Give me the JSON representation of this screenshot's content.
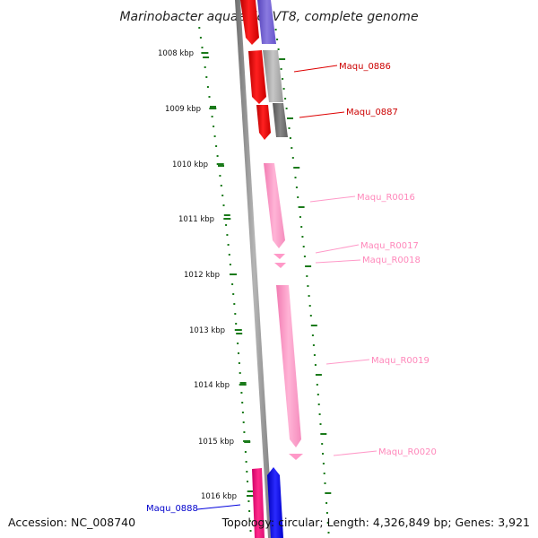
{
  "title": "Marinobacter aquaeolei VT8, complete genome",
  "footer": {
    "accession": "Accession: NC_008740",
    "topology": "Topology: circular; Length: 4,326,849 bp; Genes: 3,921"
  },
  "scale_labels": [
    "1008 kbp",
    "1009 kbp",
    "1010 kbp",
    "1011 kbp",
    "1012 kbp",
    "1013 kbp",
    "1014 kbp",
    "1015 kbp",
    "1016 kbp"
  ],
  "genes": [
    {
      "id": "Maqu_0886",
      "label": "Maqu_0886",
      "color": "#cc0000"
    },
    {
      "id": "Maqu_0887",
      "label": "Maqu_0887",
      "color": "#cc0000"
    },
    {
      "id": "Maqu_R0016",
      "label": "Maqu_R0016",
      "color": "#ff88bb"
    },
    {
      "id": "Maqu_R0017",
      "label": "Maqu_R0017",
      "color": "#ff88bb"
    },
    {
      "id": "Maqu_R0018",
      "label": "Maqu_R0018",
      "color": "#ff88bb"
    },
    {
      "id": "Maqu_R0019",
      "label": "Maqu_R0019",
      "color": "#ff88bb"
    },
    {
      "id": "Maqu_R0020",
      "label": "Maqu_R0020",
      "color": "#ff88bb"
    },
    {
      "id": "Maqu_0888",
      "label": "Maqu_0888",
      "color": "#0000cc"
    }
  ],
  "colors": {
    "backbone": "#7a7a7a",
    "tick": "#1a7a1a",
    "cds_red": "#ff0000",
    "rna_pink": "#ff99c8",
    "gray_feature": "#999999",
    "purple_feature": "#6a5acd",
    "blue_feature": "#0000ee",
    "magenta_feature": "#ee1177"
  }
}
